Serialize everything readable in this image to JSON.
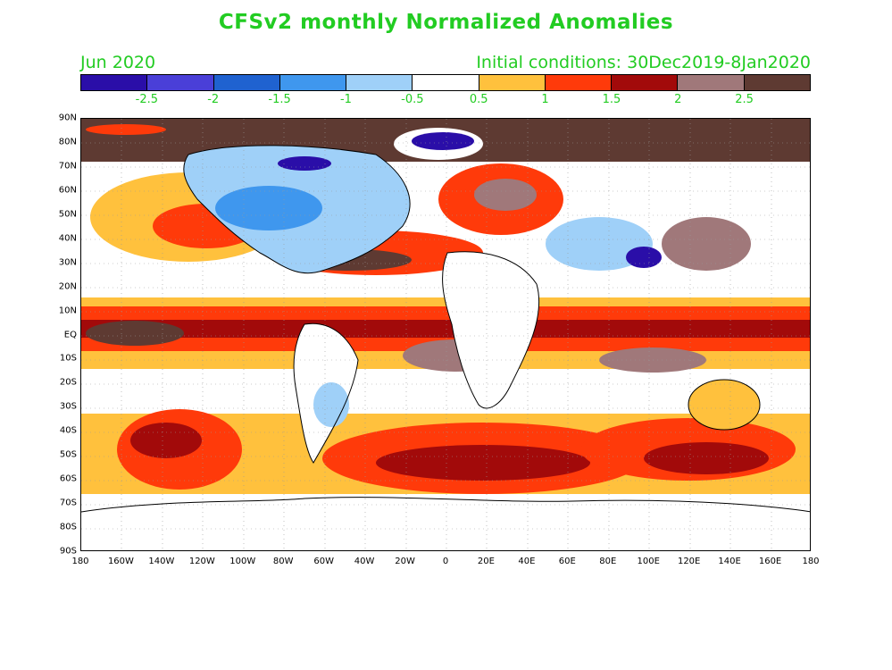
{
  "title": "CFSv2 monthly Normalized Anomalies",
  "subtitle_left": "Jun 2020",
  "subtitle_right": "Initial conditions: 30Dec2019-8Jan2020",
  "legend": {
    "colors": [
      "#2a0ea8",
      "#4a3fd8",
      "#1f62d0",
      "#3f97ee",
      "#9fd0f8",
      "#ffffff",
      "#ffc13d",
      "#ff3a0a",
      "#a20a0a",
      "#a0787a",
      "#5e3a32"
    ],
    "labels": [
      "-2.5",
      "-2",
      "-1.5",
      "-1",
      "-0.5",
      "0.5",
      "1",
      "1.5",
      "2",
      "2.5"
    ]
  },
  "lat_labels": [
    "90N",
    "80N",
    "70N",
    "60N",
    "50N",
    "40N",
    "30N",
    "20N",
    "10N",
    "EQ",
    "10S",
    "20S",
    "30S",
    "40S",
    "50S",
    "60S",
    "70S",
    "80S",
    "90S"
  ],
  "lon_labels": [
    "180",
    "160W",
    "140W",
    "120W",
    "100W",
    "80W",
    "60W",
    "40W",
    "20W",
    "0",
    "20E",
    "40E",
    "60E",
    "80E",
    "100E",
    "120E",
    "140E",
    "160E",
    "180"
  ]
}
